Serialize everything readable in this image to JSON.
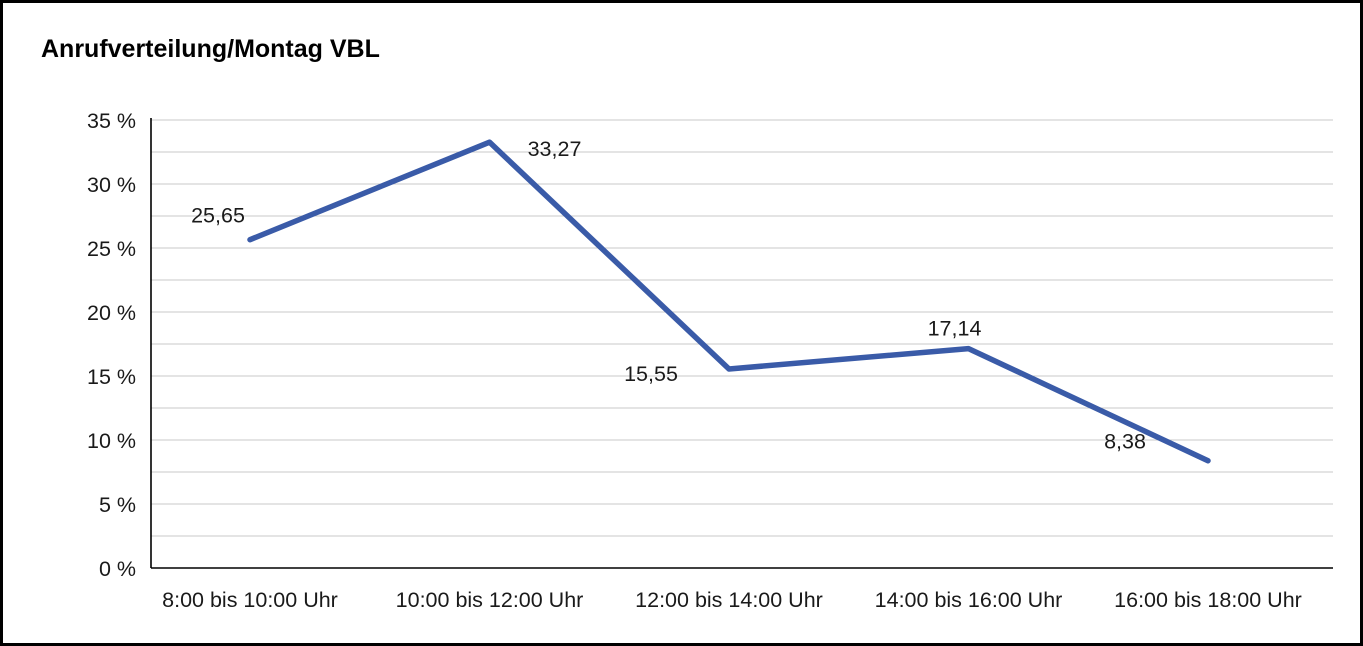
{
  "chart_data": {
    "type": "line",
    "title": "Anrufverteilung/Montag VBL",
    "categories": [
      "8:00 bis 10:00 Uhr",
      "10:00 bis 12:00 Uhr",
      "12:00 bis 14:00 Uhr",
      "14:00 bis 16:00 Uhr",
      "16:00 bis 18:00 Uhr"
    ],
    "values": [
      25.65,
      33.27,
      15.55,
      17.14,
      8.38
    ],
    "value_labels": [
      "25,65",
      "33,27",
      "15,55",
      "17,14",
      "8,38"
    ],
    "xlabel": "",
    "ylabel": "",
    "ylim": [
      0,
      35
    ],
    "ytick_step": 5,
    "ytick_labels": [
      "0 %",
      "5 %",
      "10 %",
      "15 %",
      "20 %",
      "25 %",
      "30 %",
      "35 %"
    ],
    "minor_grid_step": 2.5,
    "grid": true,
    "legend": "none",
    "line_color": "#3A5BA8",
    "grid_color": "#C9C9C9",
    "axis_color": "#000000",
    "text_color": "#1a1a1a"
  }
}
